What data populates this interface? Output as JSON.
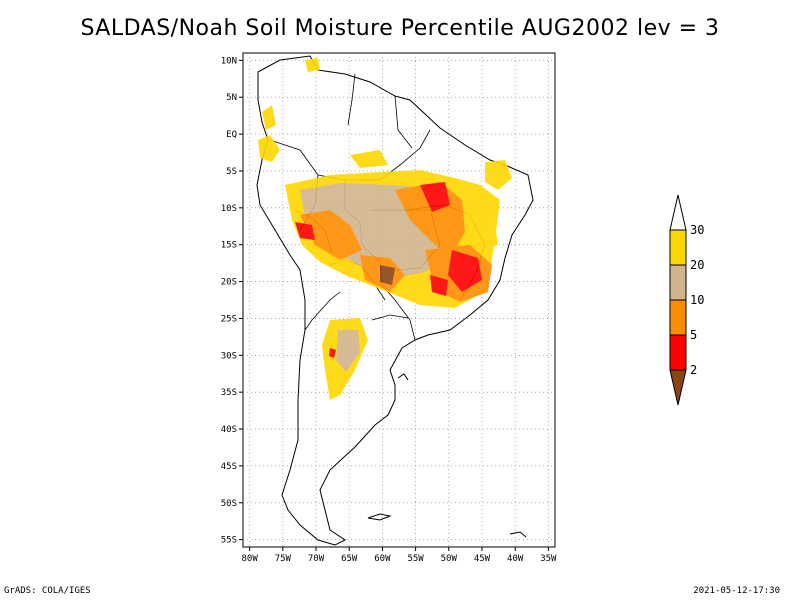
{
  "title": "SALDAS/Noah Soil Moisture Percentile AUG2002 lev = 3",
  "footer": {
    "left": "GrADS: COLA/IGES",
    "right": "2021-05-12-17:30"
  },
  "map": {
    "lat_labels": [
      "10N",
      "5N",
      "EQ",
      "5S",
      "10S",
      "15S",
      "20S",
      "25S",
      "30S",
      "35S",
      "40S",
      "45S",
      "50S",
      "55S"
    ],
    "lon_labels": [
      "80W",
      "75W",
      "70W",
      "65W",
      "60W",
      "55W",
      "50W",
      "45W",
      "40W",
      "35W"
    ],
    "lat_values": [
      10,
      5,
      0,
      -5,
      -10,
      -15,
      -20,
      -25,
      -30,
      -35,
      -40,
      -45,
      -50,
      -55
    ],
    "lon_values": [
      -80,
      -75,
      -70,
      -65,
      -60,
      -55,
      -50,
      -45,
      -40,
      -35
    ],
    "lat_range": [
      -56,
      11
    ],
    "lon_range": [
      -81,
      -34
    ],
    "grid": true,
    "grid_style": "dotted"
  },
  "legend": {
    "labels": [
      "30",
      "20",
      "10",
      "5",
      "2"
    ],
    "colors": {
      "above_30": "#ffffff",
      "20_30": "#ffd700",
      "10_20": "#d2b48c",
      "5_10": "#ff8c00",
      "2_5": "#ff0000",
      "below_2": "#8b4513"
    }
  }
}
